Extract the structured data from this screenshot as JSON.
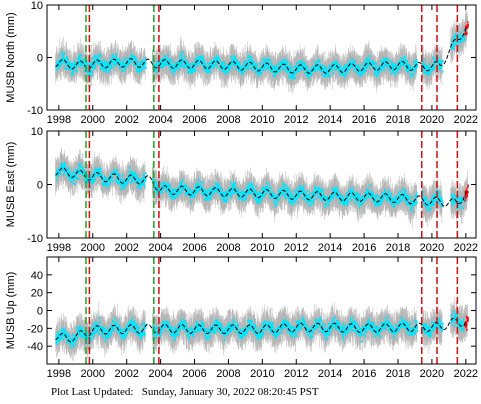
{
  "footer": {
    "label": "Plot Last Updated:",
    "timestamp": "Sunday, January 30, 2022 08:20:45 PST"
  },
  "colors": {
    "observations": "#00e5ff",
    "error_bars": "#b4b4b4",
    "model_fit": "#000000",
    "recent_points": "#ff0000",
    "green_offsets": "#22a022",
    "red_offsets": "#cc1111"
  },
  "chart_data": [
    {
      "type": "scatter",
      "ylabel": "MUSB North (mm)",
      "xlim": [
        1997.3,
        2022.6
      ],
      "ylim": [
        -10,
        10
      ],
      "yticks": [
        -10,
        0,
        10
      ],
      "xticks": [
        1998,
        2000,
        2002,
        2004,
        2006,
        2008,
        2010,
        2012,
        2014,
        2016,
        2018,
        2020,
        2022
      ],
      "grid": false,
      "green_lines": [
        1999.6,
        2003.6
      ],
      "red_lines": [
        1999.8,
        2003.9,
        2019.4,
        2020.3,
        2021.5
      ],
      "series": [
        {
          "name": "",
          "x": [
            1997.8,
            1999.0,
            2000.0,
            2002.0,
            2004.0,
            2006.0,
            2008.0,
            2010.0,
            2012.0,
            2014.0,
            2016.0,
            2018.0,
            2019.5,
            2020.5,
            2021.5,
            2022.0
          ],
          "y": [
            -1.0,
            -1.5,
            -1.3,
            -1.0,
            -1.2,
            -1.3,
            -1.5,
            -1.8,
            -2.2,
            -2.2,
            -1.8,
            -1.5,
            -1.8,
            -1.5,
            3.5,
            5.5
          ]
        }
      ]
    },
    {
      "type": "scatter",
      "ylabel": "MUSB East (mm)",
      "xlim": [
        1997.3,
        2022.6
      ],
      "ylim": [
        -10,
        10
      ],
      "yticks": [
        -10,
        0,
        10
      ],
      "xticks": [
        1998,
        2000,
        2002,
        2004,
        2006,
        2008,
        2010,
        2012,
        2014,
        2016,
        2018,
        2020,
        2022
      ],
      "grid": false,
      "green_lines": [
        1999.6,
        2003.6
      ],
      "red_lines": [
        1999.8,
        2003.9,
        2019.4,
        2020.3,
        2021.5
      ],
      "series": [
        {
          "name": "",
          "x": [
            1997.8,
            1999.0,
            2000.0,
            2002.0,
            2003.5,
            2004.0,
            2006.0,
            2008.0,
            2010.0,
            2012.0,
            2014.0,
            2016.0,
            2018.0,
            2019.5,
            2020.5,
            2021.5,
            2022.0
          ],
          "y": [
            2.5,
            2.0,
            1.5,
            1.0,
            0.8,
            -1.0,
            -1.2,
            -1.5,
            -1.7,
            -2.0,
            -2.2,
            -2.4,
            -2.6,
            -3.0,
            -3.2,
            -3.5,
            -1.5
          ]
        }
      ]
    },
    {
      "type": "scatter",
      "ylabel": "MUSB Up (mm)",
      "xlim": [
        1997.3,
        2022.6
      ],
      "ylim": [
        -60,
        60
      ],
      "yticks": [
        -40,
        -20,
        0,
        20,
        40
      ],
      "xticks": [
        1998,
        2000,
        2002,
        2004,
        2006,
        2008,
        2010,
        2012,
        2014,
        2016,
        2018,
        2020,
        2022
      ],
      "grid": false,
      "green_lines": [
        1999.6,
        2003.6
      ],
      "red_lines": [
        1999.8,
        2003.9,
        2019.4,
        2020.3,
        2021.5
      ],
      "series": [
        {
          "name": "",
          "x": [
            1997.8,
            1998.5,
            1999.5,
            2000.0,
            2002.0,
            2004.0,
            2006.0,
            2008.0,
            2010.0,
            2012.0,
            2014.0,
            2016.0,
            2018.0,
            2019.5,
            2020.5,
            2021.5,
            2022.0
          ],
          "y": [
            -28,
            -32,
            -26,
            -22,
            -21,
            -20,
            -21,
            -21,
            -21,
            -19,
            -19,
            -20,
            -19,
            -19,
            -18,
            -12,
            -14
          ]
        }
      ]
    }
  ]
}
